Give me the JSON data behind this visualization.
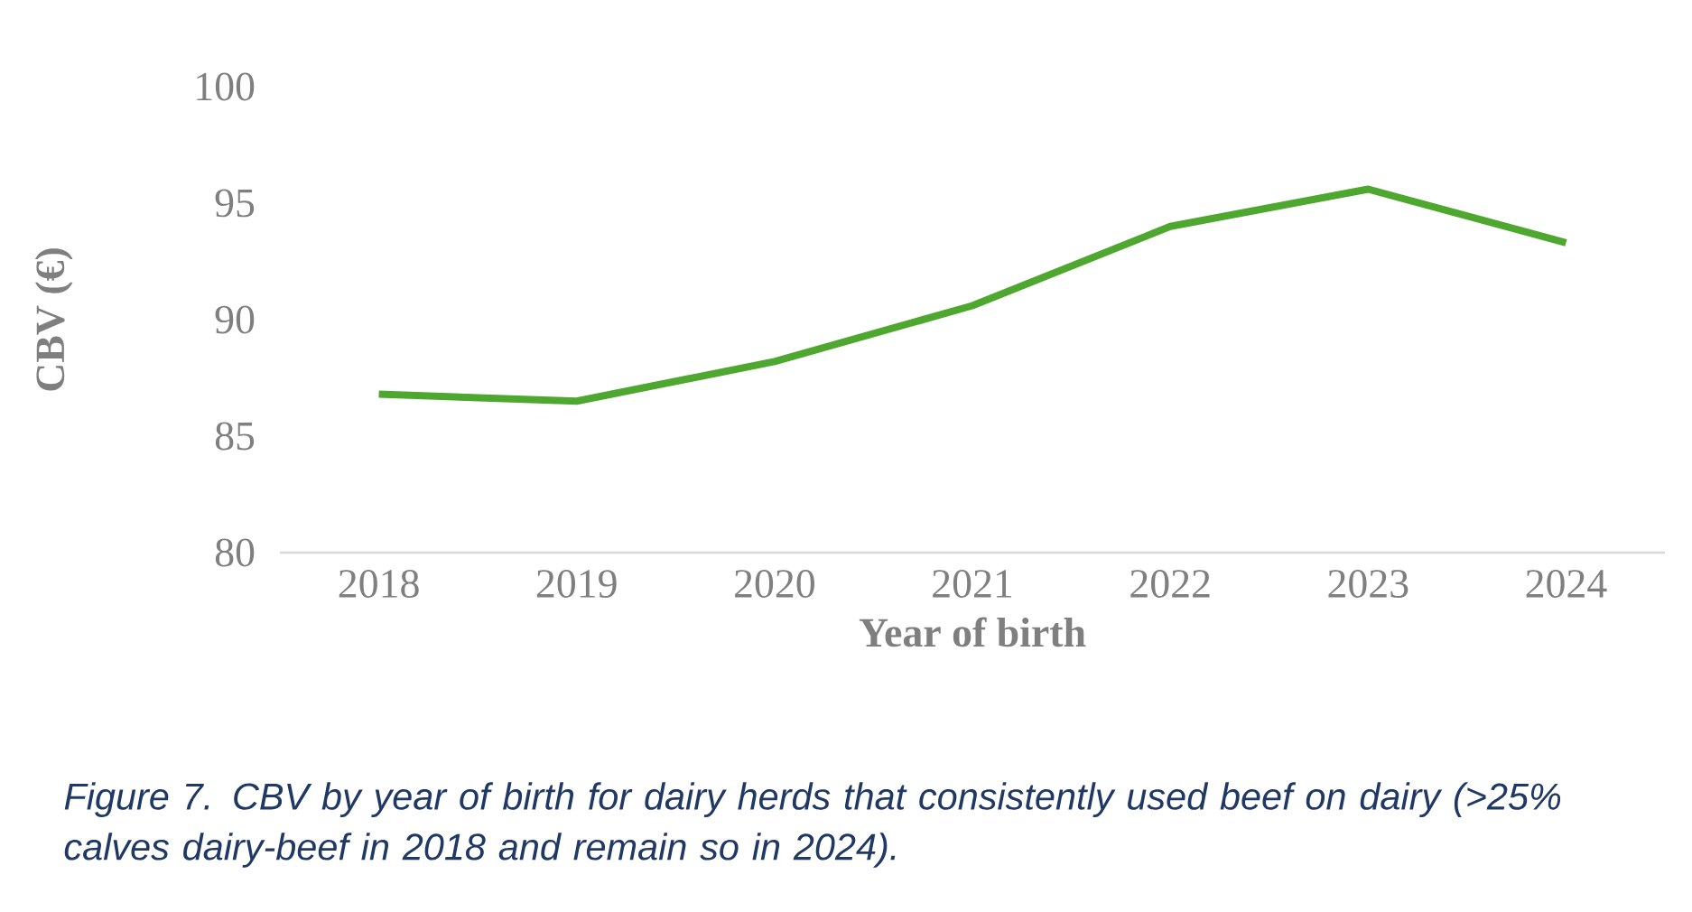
{
  "chart_data": {
    "type": "line",
    "ylabel": "CBV (€)",
    "xlabel": "Year of birth",
    "categories": [
      "2018",
      "2019",
      "2020",
      "2021",
      "2022",
      "2023",
      "2024"
    ],
    "values": [
      86.8,
      86.5,
      88.2,
      90.6,
      94.0,
      95.6,
      93.3
    ],
    "color": "#4ea72e",
    "ylim": [
      80,
      100
    ],
    "yticks": [
      80,
      85,
      90,
      95,
      100
    ],
    "grid": false,
    "marker": "none",
    "line_style": "solid",
    "annotations": [
      "Figure 7. CBV by year of birth for dairy herds that consistently used beef on dairy (>25% calves dairy-beef in 2018 and remain so in 2024)."
    ]
  }
}
